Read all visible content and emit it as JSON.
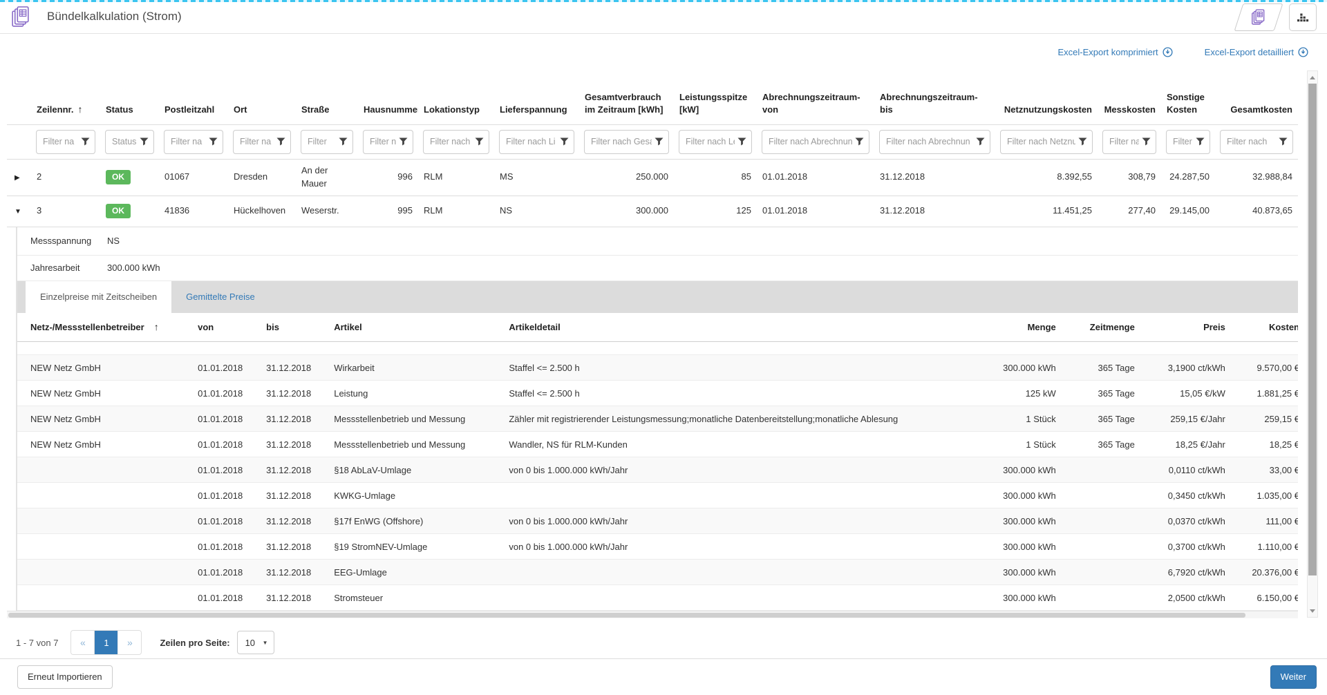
{
  "topbar": {
    "title": "Bündelkalkulation (Strom)"
  },
  "exports": {
    "compressed": "Excel-Export komprimiert",
    "detailed": "Excel-Export detailliert"
  },
  "icons": {
    "expand": "▶",
    "collapse": "▼",
    "sort_asc": "↑",
    "pager_prev": "«",
    "pager_next": "»",
    "select_caret": "▼"
  },
  "colors": {
    "accent_blue": "#337ab7",
    "badge_green": "#5cb85c",
    "top_border_cyan": "#3bc5f0",
    "icon_purple": "#8566c6"
  },
  "main_table": {
    "columns": [
      {
        "label": "",
        "filter": null
      },
      {
        "label": "Zeilennr.",
        "sort": "asc",
        "filter": "Filter na"
      },
      {
        "label": "Status",
        "filter": "Status"
      },
      {
        "label": "Postleitzahl",
        "filter": "Filter na"
      },
      {
        "label": "Ort",
        "filter": "Filter na"
      },
      {
        "label": "Straße",
        "filter": "Filter"
      },
      {
        "label": "Hausnummer",
        "filter": "Filter nach"
      },
      {
        "label": "Lokationstyp",
        "filter": "Filter nach"
      },
      {
        "label": "Lieferspannung",
        "filter": "Filter nach Li"
      },
      {
        "label": "Gesamtverbrauch im Zeitraum [kWh]",
        "filter": "Filter nach Gesa"
      },
      {
        "label": "Leistungsspitze [kW]",
        "filter": "Filter nach Le"
      },
      {
        "label": "Abrechnungszeitraum-von",
        "filter": "Filter nach Abrechnun"
      },
      {
        "label": "Abrechnungszeitraum-bis",
        "filter": "Filter nach Abrechnun"
      },
      {
        "label": "Netznutzungskosten",
        "filter": "Filter nach Netznut"
      },
      {
        "label": "Messkosten",
        "filter": "Filter na"
      },
      {
        "label": "Sonstige Kosten",
        "filter": "Filter r"
      },
      {
        "label": "Gesamtkosten",
        "filter": "Filter nach"
      }
    ],
    "rows": [
      {
        "expander": "collapsed",
        "cells": [
          "2",
          "OK",
          "01067",
          "Dresden",
          "An der Mauer",
          "996",
          "RLM",
          "MS",
          "250.000",
          "85",
          "01.01.2018",
          "31.12.2018",
          "8.392,55",
          "308,79",
          "24.287,50",
          "32.988,84"
        ]
      },
      {
        "expander": "expanded",
        "cells": [
          "3",
          "OK",
          "41836",
          "Hückelhoven",
          "Weserstr.",
          "995",
          "RLM",
          "NS",
          "300.000",
          "125",
          "01.01.2018",
          "31.12.2018",
          "11.451,25",
          "277,40",
          "29.145,00",
          "40.873,65"
        ]
      }
    ]
  },
  "expanded_panel": {
    "properties": [
      {
        "label": "Messspannung",
        "value": "NS"
      },
      {
        "label": "Jahresarbeit",
        "value": "300.000 kWh"
      }
    ],
    "tabs": [
      {
        "label": "Einzelpreise mit Zeitscheiben",
        "active": true
      },
      {
        "label": "Gemittelte Preise",
        "active": false
      }
    ],
    "detail_table": {
      "columns": [
        "Netz-/Messstellenbetreiber",
        "von",
        "bis",
        "Artikel",
        "Artikeldetail",
        "Menge",
        "Zeitmenge",
        "Preis",
        "Kosten"
      ],
      "rows": [
        [
          "NEW Netz GmbH",
          "01.01.2018",
          "31.12.2018",
          "Wirkarbeit",
          "Staffel <= 2.500 h",
          "300.000 kWh",
          "365 Tage",
          "3,1900 ct/kWh",
          "9.570,00 €"
        ],
        [
          "NEW Netz GmbH",
          "01.01.2018",
          "31.12.2018",
          "Leistung",
          "Staffel <= 2.500 h",
          "125 kW",
          "365 Tage",
          "15,05 €/kW",
          "1.881,25 €"
        ],
        [
          "NEW Netz GmbH",
          "01.01.2018",
          "31.12.2018",
          "Messstellenbetrieb und Messung",
          "Zähler mit registrierender Leistungsmessung;monatliche Datenbereitstellung;monatliche Ablesung",
          "1 Stück",
          "365 Tage",
          "259,15 €/Jahr",
          "259,15 €"
        ],
        [
          "NEW Netz GmbH",
          "01.01.2018",
          "31.12.2018",
          "Messstellenbetrieb und Messung",
          "Wandler, NS für RLM-Kunden",
          "1 Stück",
          "365 Tage",
          "18,25 €/Jahr",
          "18,25 €"
        ],
        [
          "",
          "01.01.2018",
          "31.12.2018",
          "§18 AbLaV-Umlage",
          "von 0 bis 1.000.000 kWh/Jahr",
          "300.000 kWh",
          "",
          "0,0110 ct/kWh",
          "33,00 €"
        ],
        [
          "",
          "01.01.2018",
          "31.12.2018",
          "KWKG-Umlage",
          "",
          "300.000 kWh",
          "",
          "0,3450 ct/kWh",
          "1.035,00 €"
        ],
        [
          "",
          "01.01.2018",
          "31.12.2018",
          "§17f EnWG (Offshore)",
          "von 0 bis 1.000.000 kWh/Jahr",
          "300.000 kWh",
          "",
          "0,0370 ct/kWh",
          "111,00 €"
        ],
        [
          "",
          "01.01.2018",
          "31.12.2018",
          "§19 StromNEV-Umlage",
          "von 0 bis 1.000.000 kWh/Jahr",
          "300.000 kWh",
          "",
          "0,3700 ct/kWh",
          "1.110,00 €"
        ],
        [
          "",
          "01.01.2018",
          "31.12.2018",
          "EEG-Umlage",
          "",
          "300.000 kWh",
          "",
          "6,7920 ct/kWh",
          "20.376,00 €"
        ],
        [
          "",
          "01.01.2018",
          "31.12.2018",
          "Stromsteuer",
          "",
          "300.000 kWh",
          "",
          "2,0500 ct/kWh",
          "6.150,00 €"
        ]
      ]
    }
  },
  "pagination": {
    "range": "1 - 7 von 7",
    "prev": "«",
    "page": "1",
    "next": "»",
    "per_page_label": "Zeilen pro Seite:",
    "per_page": "10"
  },
  "footer": {
    "reimport": "Erneut Importieren",
    "next": "Weiter"
  }
}
